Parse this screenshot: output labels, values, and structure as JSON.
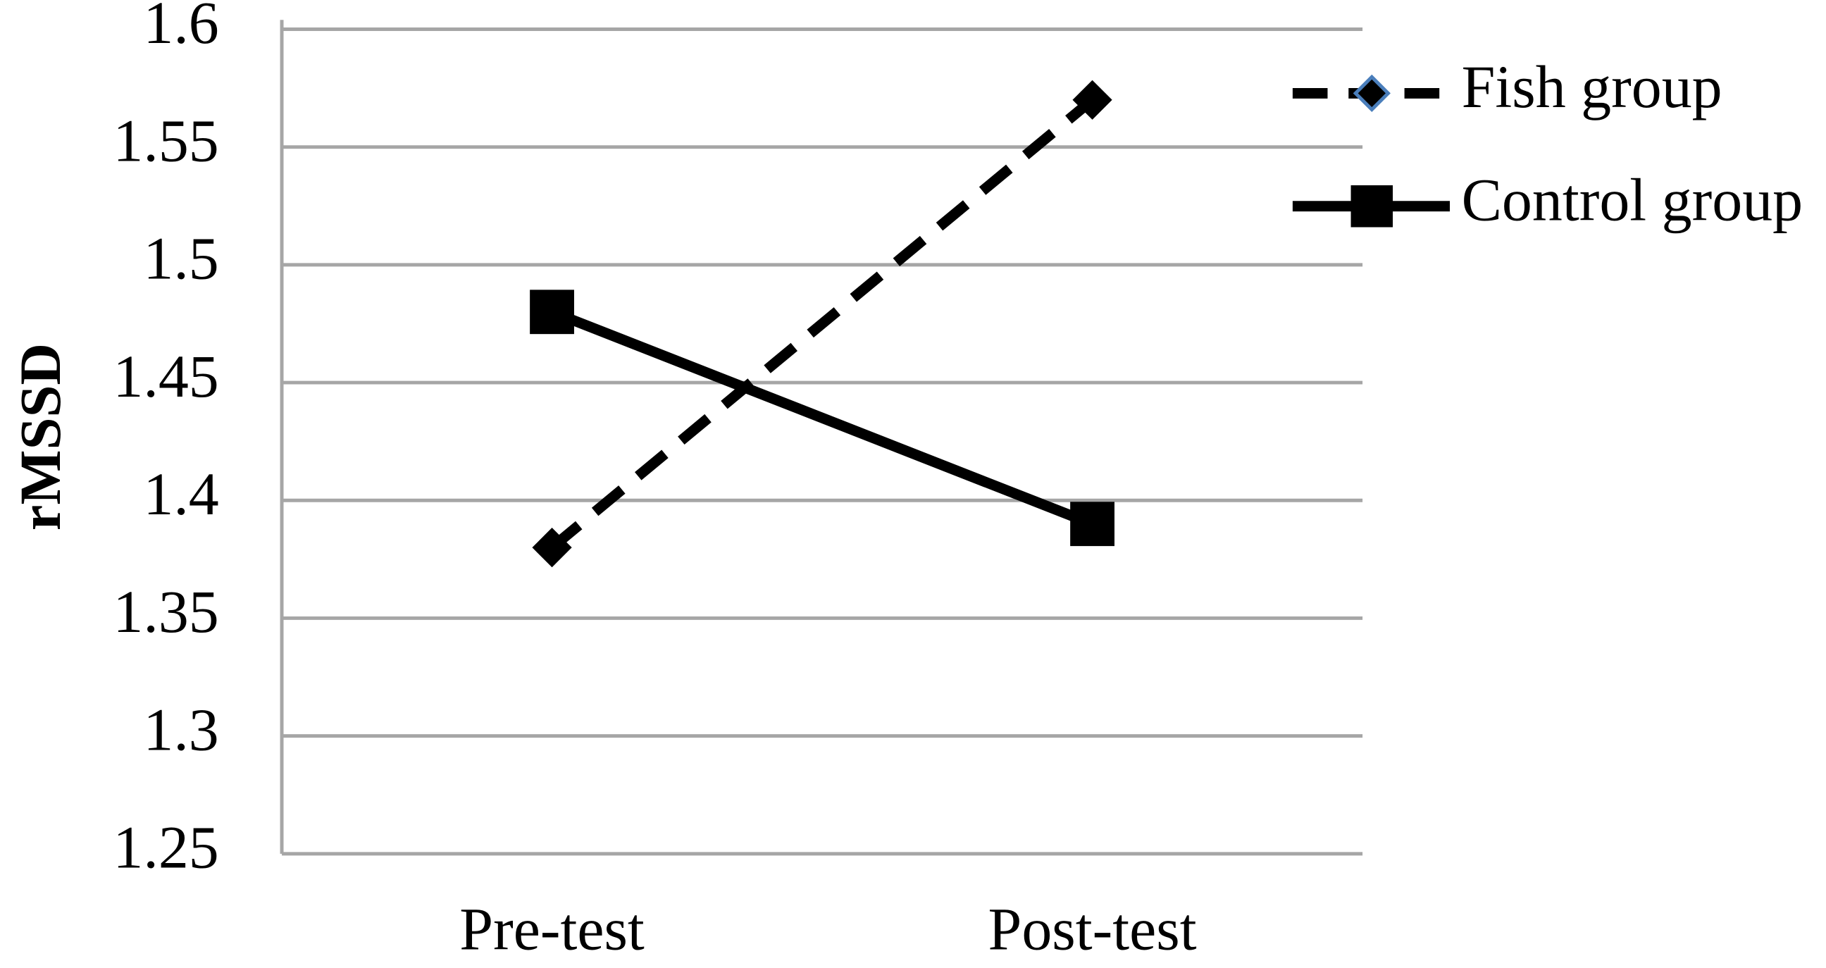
{
  "chart_data": {
    "type": "line",
    "y_label": "rMSSD",
    "categories": [
      "Pre-test",
      "Post-test"
    ],
    "series": [
      {
        "name": "Fish group",
        "color": "#000000",
        "dashed": true,
        "marker": "diamond",
        "values": [
          1.38,
          1.57
        ]
      },
      {
        "name": "Control group",
        "color": "#000000",
        "dashed": false,
        "marker": "square",
        "values": [
          1.48,
          1.39
        ]
      }
    ],
    "ylim": [
      1.25,
      1.6
    ],
    "yticks": [
      1.25,
      1.3,
      1.35,
      1.4,
      1.45,
      1.5,
      1.55,
      1.6
    ],
    "grid": true,
    "legend": "top-right"
  }
}
